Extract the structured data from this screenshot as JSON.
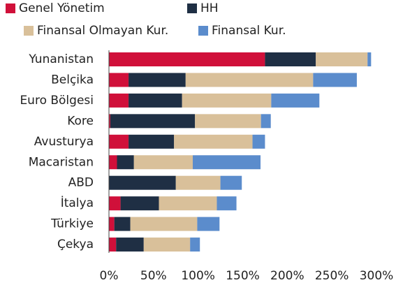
{
  "chart_data": {
    "type": "stacked_barh",
    "categories": [
      "Yunanistan",
      "Belçika",
      "Euro Bölgesi",
      "Kore",
      "Avusturya",
      "Macaristan",
      "ABD",
      "İtalya",
      "Türkiye",
      "Çekya"
    ],
    "series": [
      {
        "name": "Genel Yönetim",
        "color": "#d0103a",
        "values": [
          175,
          22,
          22,
          1.5,
          22,
          9,
          0,
          13,
          6,
          8
        ]
      },
      {
        "name": "HH",
        "color": "#1f2f44",
        "values": [
          57,
          64,
          60,
          95,
          51,
          19,
          75,
          43,
          18,
          31
        ]
      },
      {
        "name": "Finansal Olmayan Kur.",
        "color": "#d9c09a",
        "values": [
          58,
          143,
          100,
          74,
          88,
          66,
          50,
          65,
          75,
          52
        ]
      },
      {
        "name": "Finansal Kur.",
        "color": "#5b8ccc",
        "values": [
          4,
          49,
          54,
          11,
          14,
          76,
          24,
          22,
          25,
          11
        ]
      }
    ],
    "xlim": [
      0,
      300
    ],
    "xticks": [
      {
        "value": 0,
        "label": "0%"
      },
      {
        "value": 50,
        "label": "50%"
      },
      {
        "value": 100,
        "label": "100%"
      },
      {
        "value": 150,
        "label": "150%"
      },
      {
        "value": 200,
        "label": "200%"
      },
      {
        "value": 250,
        "label": "250%"
      },
      {
        "value": 300,
        "label": "300%"
      }
    ]
  }
}
